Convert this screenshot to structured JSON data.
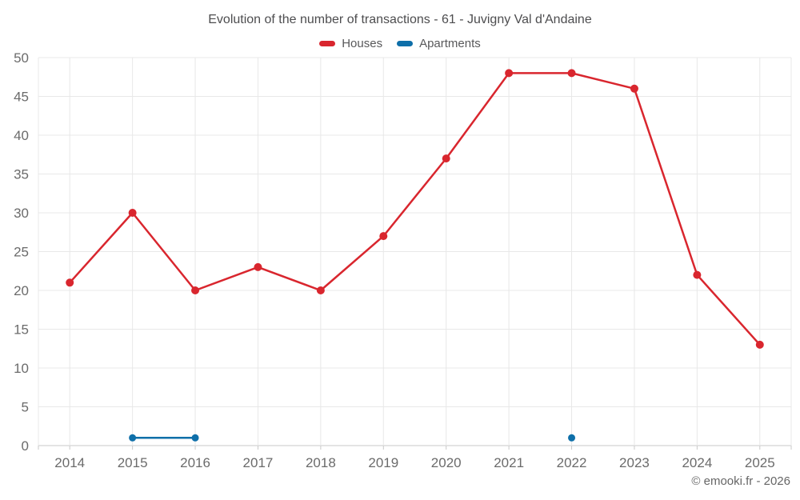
{
  "title": "Evolution of the number of transactions - 61 - Juvigny Val d'Andaine",
  "legend": {
    "items": [
      {
        "id": "houses",
        "label": "Houses",
        "color": "#d9262e"
      },
      {
        "id": "apartments",
        "label": "Apartments",
        "color": "#0e6fa9"
      }
    ]
  },
  "watermark": "© emooki.fr - 2026",
  "chart_data": {
    "type": "line",
    "x": [
      2014,
      2015,
      2016,
      2017,
      2018,
      2019,
      2020,
      2021,
      2022,
      2023,
      2024,
      2025
    ],
    "series": [
      {
        "name": "Houses",
        "color": "#d9262e",
        "values": [
          21,
          30,
          20,
          23,
          20,
          27,
          37,
          48,
          48,
          46,
          22,
          13
        ]
      },
      {
        "name": "Apartments",
        "color": "#0e6fa9",
        "values": [
          null,
          1,
          1,
          null,
          null,
          null,
          null,
          null,
          1,
          null,
          null,
          null
        ]
      }
    ],
    "ylim": [
      0,
      50
    ],
    "yticks": [
      0,
      5,
      10,
      15,
      20,
      25,
      30,
      35,
      40,
      45,
      50
    ],
    "grid": true,
    "legend_position": "top",
    "colors": {
      "gridline": "#e8e8e8",
      "axis": "#c9c9c9"
    }
  }
}
